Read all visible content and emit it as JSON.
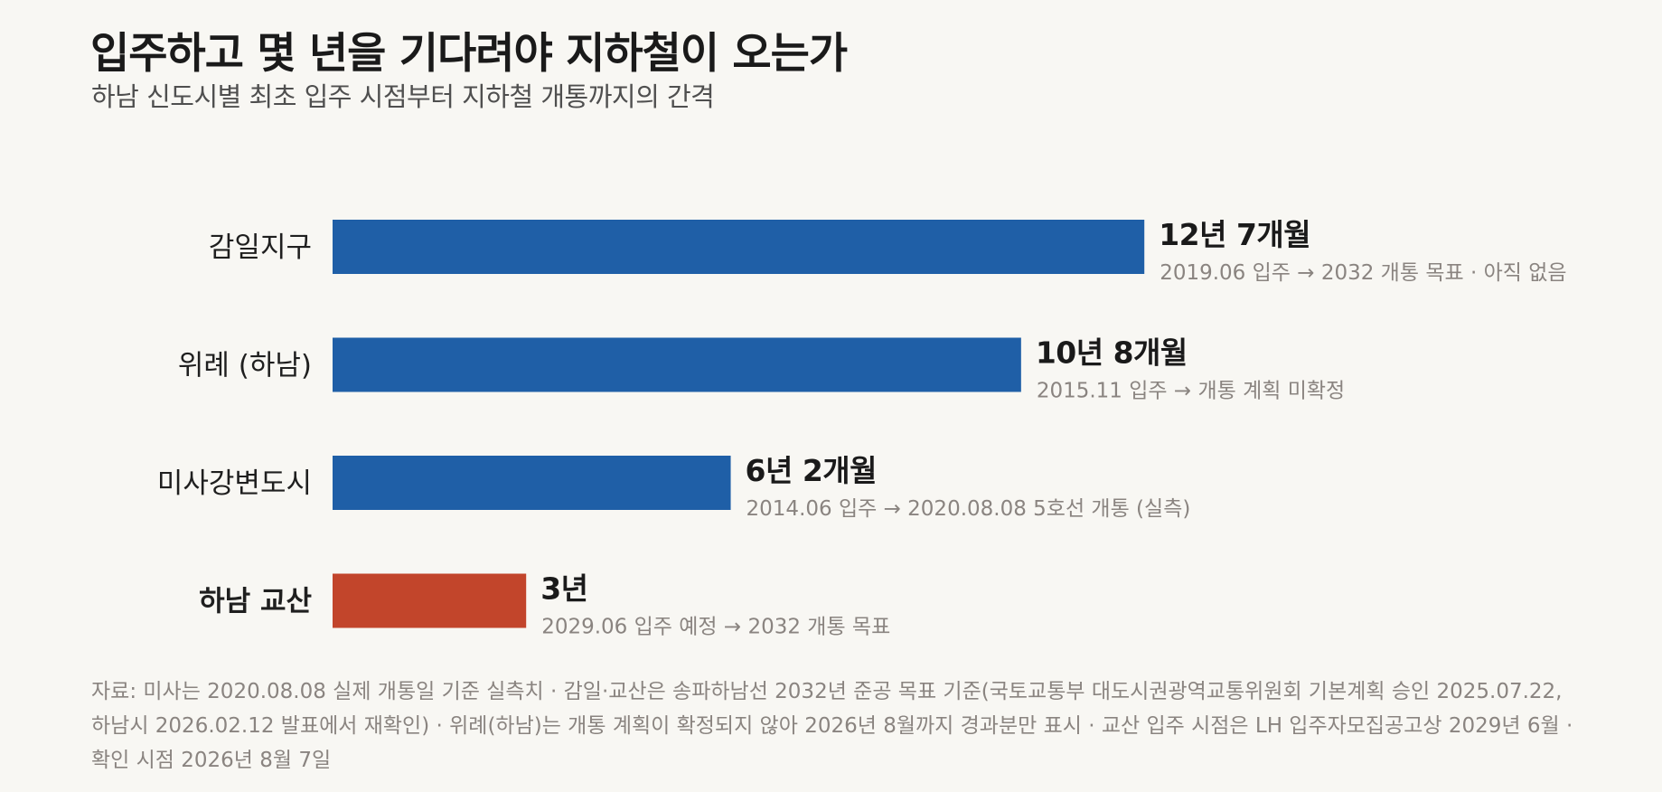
{
  "header": {
    "title": "입주하고 몇 년을 기다려야 지하철이 오는가",
    "subtitle": "하남 신도시별 최초 입주 시점부터 지하철 개통까지의 간격"
  },
  "chart_data": {
    "type": "bar",
    "orientation": "horizontal",
    "title": "입주하고 몇 년을 기다려야 지하철이 오는가",
    "subtitle": "하남 신도시별 최초 입주 시점부터 지하철 개통까지의 간격",
    "categories": [
      "감일지구",
      "위례 (하남)",
      "미사강변도시",
      "하남 교산"
    ],
    "values": [
      12.58,
      10.67,
      6.17,
      3.0
    ],
    "unit": "years",
    "value_labels": [
      "12년 7개월",
      "10년 8개월",
      "6년 2개월",
      "3년"
    ],
    "notes": [
      "2019.06 입주 → 2032 개통 목표 · 아직 없음",
      "2015.11 입주 → 개통 계획 미확정",
      "2014.06 입주 → 2020.08.08 5호선 개통 (실측)",
      "2029.06 입주 예정 → 2032 개통 목표"
    ],
    "highlight_index": 3,
    "colors": {
      "default": "#1f5fa7",
      "highlight": "#c2452b"
    },
    "xlim": [
      0,
      13
    ],
    "xlabel": "",
    "ylabel": "",
    "grid": false,
    "legend": "none"
  },
  "footnote": "자료: 미사는 2020.08.08 실제 개통일 기준 실측치 · 감일·교산은 송파하남선 2032년 준공 목표 기준(국토교통부 대도시권광역교통위원회 기본계획 승인 2025.07.22, 하남시 2026.02.12 발표에서 재확인) · 위례(하남)는 개통 계획이 확정되지 않아 2026년 8월까지 경과분만 표시 · 교산 입주 시점은 LH 입주자모집공고상 2029년 6월 · 확인 시점 2026년 8월 7일"
}
